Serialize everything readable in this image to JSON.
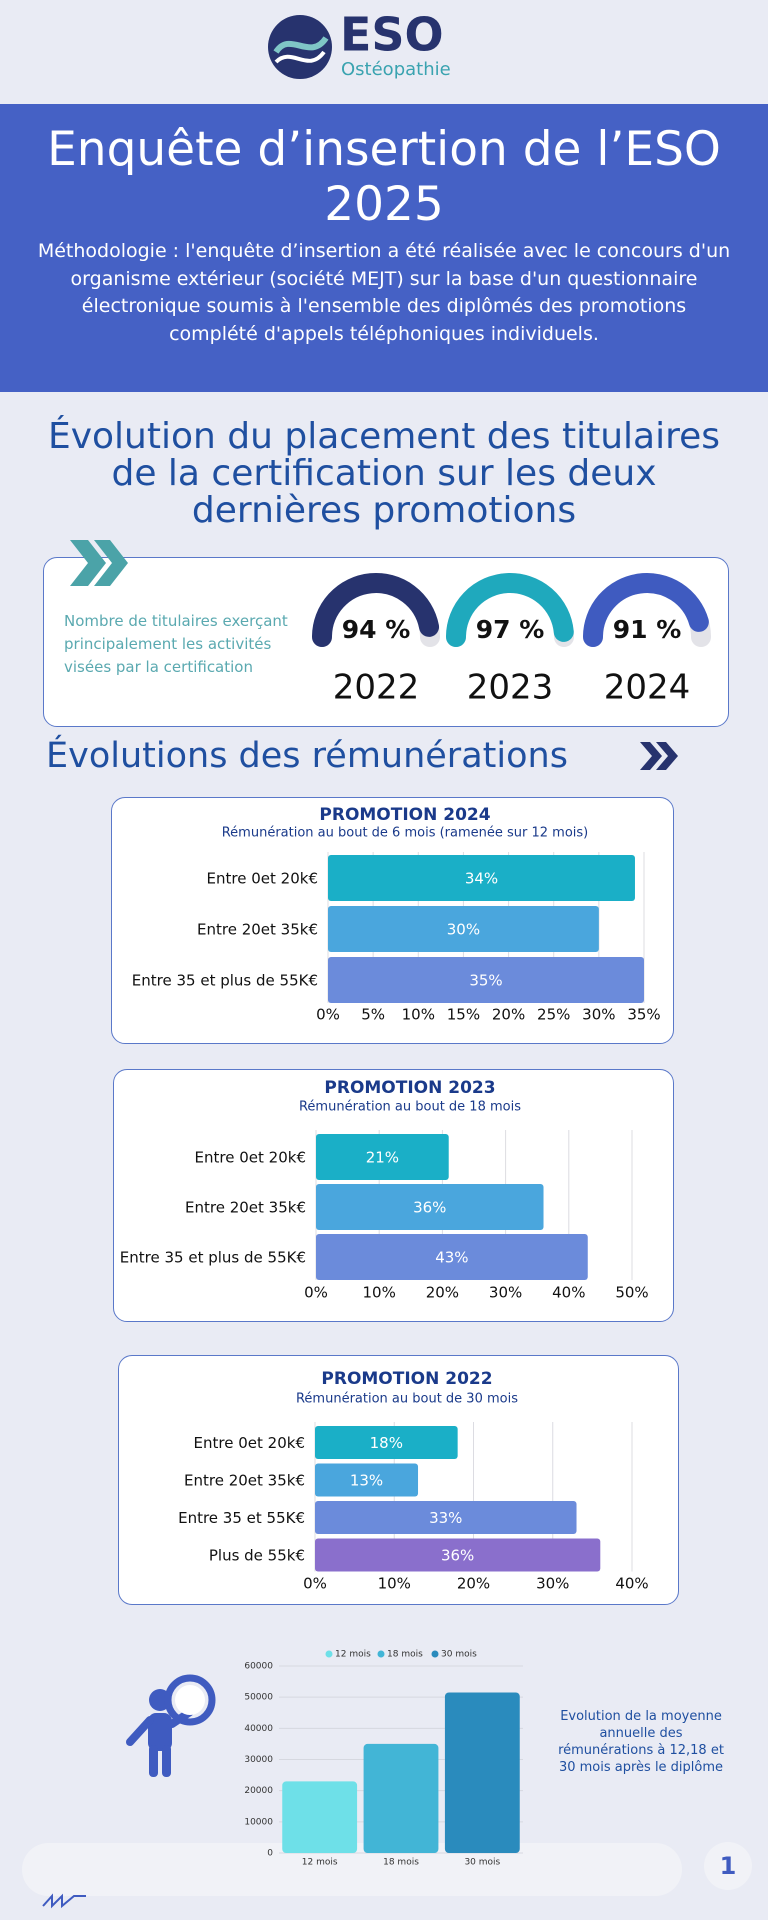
{
  "logo": {
    "name": "ESO",
    "subtitle": "Ostéopathie"
  },
  "banner": {
    "title": "Enquête d’insertion de l’ESO 2025",
    "methodology": "Méthodologie : l'enquête d’insertion a été réalisée avec le concours d'un organisme extérieur (société MEJT) sur la base d'un questionnaire électronique soumis à l'ensemble des diplômés des promotions complété d'appels téléphoniques individuels."
  },
  "placement_title": "Évolution du placement des titulaires de la certification sur les deux dernières promotions",
  "remuneration_title": "Évolutions des rémunérations",
  "footer": {
    "page": "1"
  },
  "chart_data": [
    {
      "type": "gauge",
      "title": "Nombre de titulaires exerçant principalement les activités visées par la certification",
      "categories": [
        "2022",
        "2023",
        "2024"
      ],
      "values": [
        94,
        97,
        91
      ],
      "value_labels": [
        "94 %",
        "97 %",
        "91 %"
      ],
      "ylim": [
        0,
        100
      ],
      "colors": [
        "#27336e",
        "#1fa9bd",
        "#3f5bc0"
      ]
    },
    {
      "type": "hbar",
      "title": "PROMOTION 2024",
      "subtitle": "Rémunération au bout de 6 mois (ramenée sur 12 mois)",
      "categories": [
        "Entre 0et 20k€",
        "Entre 20et 35k€",
        "Entre 35 et plus de 55K€"
      ],
      "values": [
        34,
        30,
        35
      ],
      "value_labels": [
        "34%",
        "30%",
        "35%"
      ],
      "colors": [
        "#1aafc7",
        "#4aa6dd",
        "#6b8bdb"
      ],
      "xlim": [
        0,
        35
      ],
      "xticks": [
        {
          "value": 0,
          "label": "0%"
        },
        {
          "value": 5,
          "label": "5%"
        },
        {
          "value": 10,
          "label": "10%"
        },
        {
          "value": 15,
          "label": "15%"
        },
        {
          "value": 20,
          "label": "20%"
        },
        {
          "value": 25,
          "label": "25%"
        },
        {
          "value": 30,
          "label": "30%"
        },
        {
          "value": 35,
          "label": "35%"
        }
      ],
      "grid": true
    },
    {
      "type": "hbar",
      "title": "PROMOTION 2023",
      "subtitle": "Rémunération au bout de 18 mois",
      "categories": [
        "Entre 0et 20k€",
        "Entre 20et 35k€",
        "Entre 35 et plus de 55K€"
      ],
      "values": [
        21,
        36,
        43
      ],
      "value_labels": [
        "21%",
        "36%",
        "43%"
      ],
      "colors": [
        "#1aafc7",
        "#4aa6dd",
        "#6b8bdb"
      ],
      "xlim": [
        0,
        50
      ],
      "xticks": [
        {
          "value": 0,
          "label": "0%"
        },
        {
          "value": 10,
          "label": "10%"
        },
        {
          "value": 20,
          "label": "20%"
        },
        {
          "value": 30,
          "label": "30%"
        },
        {
          "value": 40,
          "label": "40%"
        },
        {
          "value": 50,
          "label": "50%"
        }
      ],
      "grid": true
    },
    {
      "type": "hbar",
      "title": "PROMOTION 2022",
      "subtitle": "Rémunération au bout de 30 mois",
      "categories": [
        "Entre 0et 20k€",
        "Entre 20et 35k€",
        "Entre 35 et 55K€",
        "Plus de 55k€"
      ],
      "values": [
        18,
        13,
        33,
        36
      ],
      "value_labels": [
        "18%",
        "13%",
        "33%",
        "36%"
      ],
      "colors": [
        "#1aafc7",
        "#4aa6dd",
        "#6b8bdb",
        "#8a6fcc"
      ],
      "xlim": [
        0,
        40
      ],
      "xticks": [
        {
          "value": 0,
          "label": "0%"
        },
        {
          "value": 10,
          "label": "10%"
        },
        {
          "value": 20,
          "label": "20%"
        },
        {
          "value": 30,
          "label": "30%"
        },
        {
          "value": 40,
          "label": "40%"
        }
      ],
      "grid": true
    },
    {
      "type": "bar",
      "caption": "Evolution de la moyenne annuelle des rémunérations à 12,18 et 30 mois après le diplôme",
      "categories": [
        "12 mois",
        "18 mois",
        "30 mois"
      ],
      "values": [
        23000,
        35000,
        51500
      ],
      "colors": [
        "#6ee0e8",
        "#42b5d6",
        "#2a8bbd"
      ],
      "ylim": [
        0,
        60000
      ],
      "yticks": [
        0,
        10000,
        20000,
        30000,
        40000,
        50000,
        60000
      ],
      "grid": true
    }
  ]
}
